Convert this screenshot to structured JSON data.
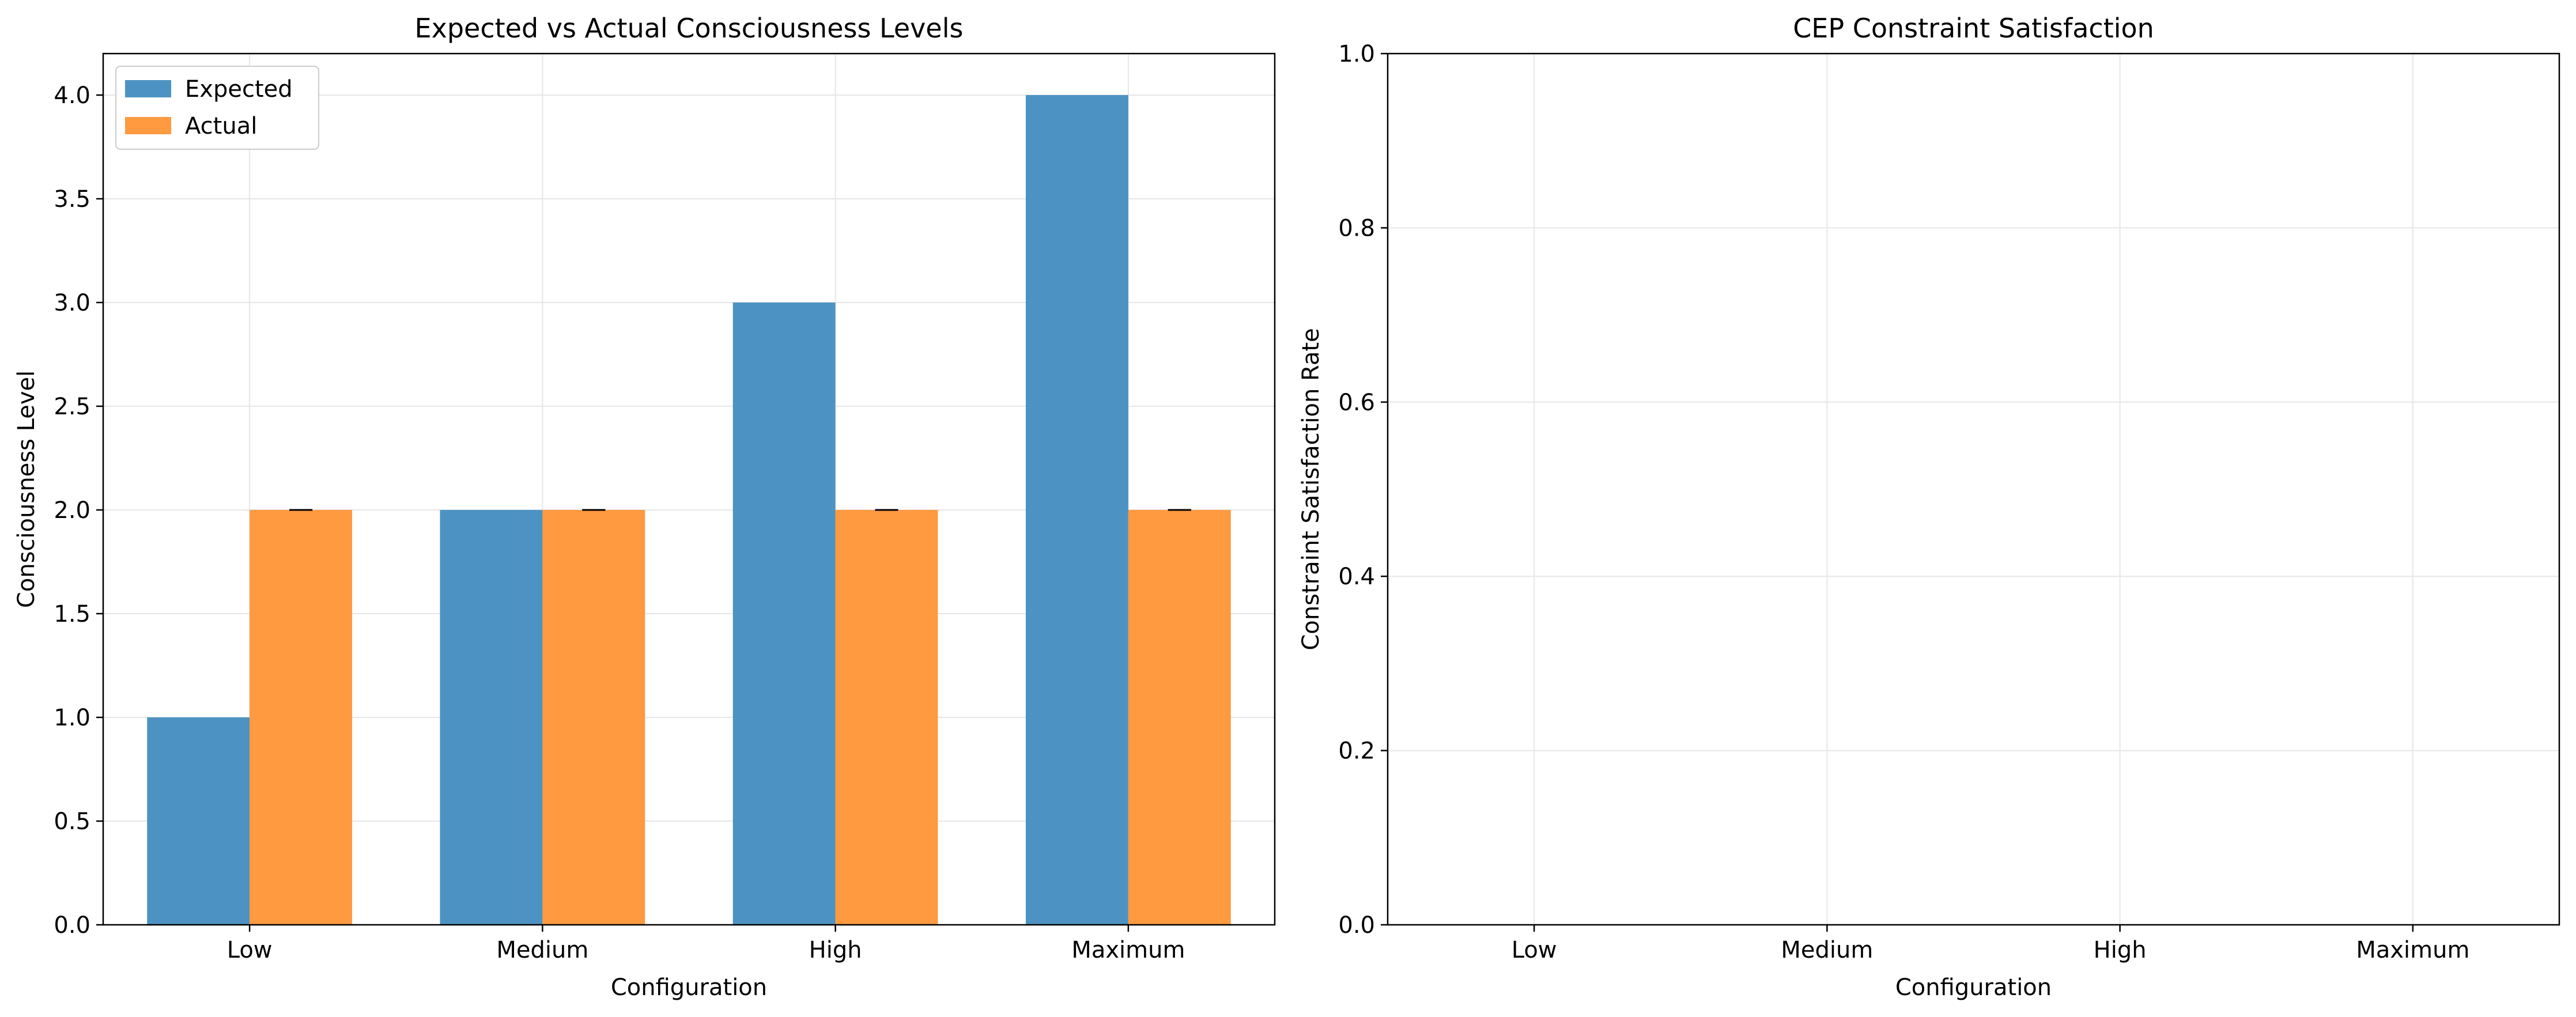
{
  "chart_data": [
    {
      "type": "bar",
      "title": "Expected vs Actual Consciousness Levels",
      "xlabel": "Configuration",
      "ylabel": "Consciousness Level",
      "categories": [
        "Low",
        "Medium",
        "High",
        "Maximum"
      ],
      "ylim": [
        0,
        4.2
      ],
      "yticks": [
        0.0,
        0.5,
        1.0,
        1.5,
        2.0,
        2.5,
        3.0,
        3.5,
        4.0
      ],
      "grid": true,
      "legend": "top-left",
      "series": [
        {
          "name": "Expected",
          "values": [
            1,
            2,
            3,
            4
          ],
          "color": "#4c93c3"
        },
        {
          "name": "Actual",
          "values": [
            2,
            2,
            2,
            2
          ],
          "error": [
            0,
            0,
            0,
            0
          ],
          "color": "#ff9a40"
        }
      ]
    },
    {
      "type": "bar",
      "title": "CEP Constraint Satisfaction",
      "xlabel": "Configuration",
      "ylabel": "Constraint Satisfaction Rate",
      "categories": [
        "Low",
        "Medium",
        "High",
        "Maximum"
      ],
      "ylim": [
        0,
        1
      ],
      "yticks": [
        0.0,
        0.2,
        0.4,
        0.6,
        0.8,
        1.0
      ],
      "grid": true,
      "series": []
    }
  ]
}
